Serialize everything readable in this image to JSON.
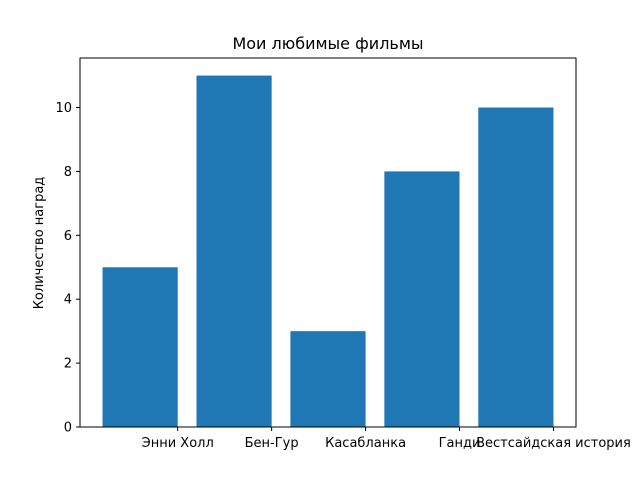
{
  "chart_data": {
    "type": "bar",
    "title": "Мои любимые фильмы",
    "xlabel": "",
    "ylabel": "Количество наград",
    "categories": [
      "Энни Холл",
      "Бен-Гур",
      "Касабланка",
      "Ганди",
      "Вестсайдская история"
    ],
    "values": [
      5,
      11,
      3,
      8,
      10
    ],
    "ylim": [
      0,
      11.55
    ],
    "yticks": [
      0,
      2,
      4,
      6,
      8,
      10
    ],
    "color": "#1f77b4",
    "grid": false,
    "legend": "none"
  }
}
